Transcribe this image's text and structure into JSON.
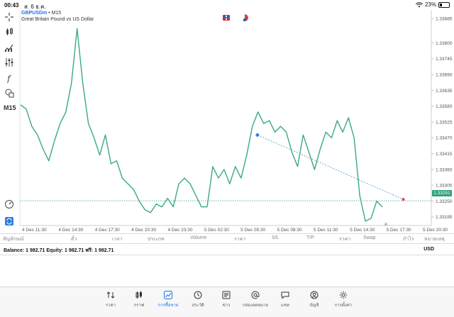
{
  "status": {
    "time": "00:43",
    "date": "ส. 6 ธ.ค.",
    "battery": "23%",
    "battery_level": 0.23
  },
  "chart": {
    "symbol": "GBPUSDm",
    "timeframe_suffix": " • M15",
    "description": "Great Britain Pound vs US Dollar",
    "timeframe_label": "M15",
    "current_price": "1.33251",
    "colors": {
      "line": "#3aa985",
      "current": "#2fa37a",
      "trade_line": "#4a90c8"
    }
  },
  "chart_data": {
    "type": "line",
    "x_labels": [
      "4 Dec 11:30",
      "4 Dec 14:30",
      "4 Dec 17:30",
      "4 Dec 20:30",
      "4 Dec 23:30",
      "5 Dec 02:30",
      "5 Dec 05:30",
      "5 Dec 08:30",
      "5 Dec 11:30",
      "5 Dec 14:30",
      "5 Dec 17:30",
      "5 Dec 20:30"
    ],
    "y_ticks": [
      "1.33885",
      "1.33800",
      "1.33745",
      "1.33690",
      "1.33635",
      "1.33580",
      "1.33525",
      "1.33470",
      "1.33415",
      "1.33360",
      "1.33305",
      "1.33250",
      "1.33195"
    ],
    "ylim": [
      1.3317,
      1.3391
    ],
    "series": [
      {
        "values": [
          1.33585,
          1.3357,
          1.3351,
          1.3348,
          1.3343,
          1.3339,
          1.3346,
          1.3352,
          1.3356,
          1.3366,
          1.3385,
          1.3366,
          1.3352,
          1.3347,
          1.3341,
          1.3348,
          1.3338,
          1.3339,
          1.3333,
          1.3331,
          1.3329,
          1.3325,
          1.3322,
          1.3321,
          1.3324,
          1.3323,
          1.3326,
          1.3323,
          1.3331,
          1.3333,
          1.3331,
          1.3327,
          1.3323,
          1.3323,
          1.3337,
          1.3333,
          1.3336,
          1.3331,
          1.3337,
          1.3333,
          1.3341,
          1.3351,
          1.3356,
          1.3352,
          1.3353,
          1.3349,
          1.3351,
          1.3349,
          1.3342,
          1.3337,
          1.3348,
          1.3342,
          1.3336,
          1.3343,
          1.3349,
          1.3347,
          1.3353,
          1.3349,
          1.3354,
          1.3347,
          1.3327,
          1.3318,
          1.3319,
          1.3325,
          1.3323
        ]
      }
    ],
    "current_value": 1.33251,
    "trade_line": {
      "from": [
        0.578,
        1.3348
      ],
      "to": [
        0.935,
        1.33256
      ]
    }
  },
  "table": {
    "headers": [
      "สัญลักษณ์",
      "ตั๋ว",
      "เวลา",
      "ประเภท",
      "Volume",
      "ราคา",
      "S/L",
      "T/P",
      "ราคา",
      "Swap",
      "กำไร",
      "หมายเหตุ"
    ],
    "balance": "Balance: 1 982.71  Equity: 1 982.71  ฟรี: 1 982.71",
    "currency": "USD"
  },
  "tabs": [
    {
      "label": "ราคา",
      "icon": "quotes-arrows-icon"
    },
    {
      "label": "กราฟ",
      "icon": "candles-icon"
    },
    {
      "label": "การซื้อขาย",
      "icon": "trade-chart-icon",
      "active": true
    },
    {
      "label": "ประวัติ",
      "icon": "history-clock-icon"
    },
    {
      "label": "ข่าว",
      "icon": "news-icon"
    },
    {
      "label": "กล่องจดหมาย",
      "icon": "mailbox-at-icon"
    },
    {
      "label": "แชท",
      "icon": "chat-icon"
    },
    {
      "label": "บัญชี",
      "icon": "account-icon"
    },
    {
      "label": "การตั้งค่า",
      "icon": "settings-gear-icon"
    }
  ]
}
